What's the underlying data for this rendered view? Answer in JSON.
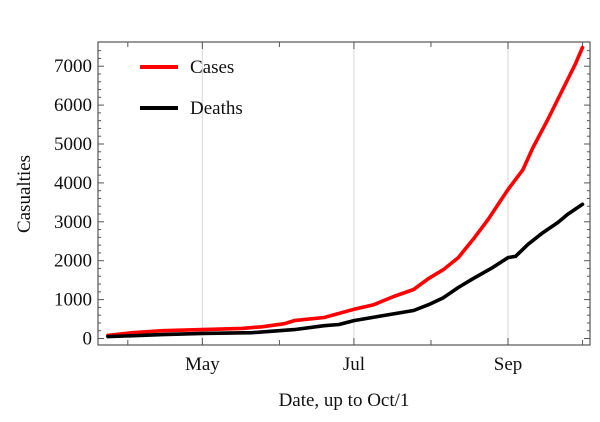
{
  "chart_data": {
    "type": "line",
    "title": "",
    "xlabel": "Date, up to Oct/1",
    "ylabel": "Casualties",
    "ylim": [
      0,
      7500
    ],
    "xlim": [
      "2014-03-20",
      "2014-10-04"
    ],
    "yticks": [
      0,
      1000,
      2000,
      3000,
      4000,
      5000,
      6000,
      7000
    ],
    "xticks": [
      {
        "date": "2014-05-01",
        "label": "May"
      },
      {
        "date": "2014-07-01",
        "label": "Jul"
      },
      {
        "date": "2014-09-01",
        "label": "Sep"
      }
    ],
    "x_minor_ticks": [
      "2014-04-01",
      "2014-06-01",
      "2014-08-01",
      "2014-10-01"
    ],
    "grid": "vertical lines at labeled months",
    "legend_placement": "top-left",
    "series": [
      {
        "name": "Cases",
        "color": "#ff0000",
        "points": [
          [
            "2014-03-24",
            80
          ],
          [
            "2014-04-03",
            150
          ],
          [
            "2014-04-15",
            200
          ],
          [
            "2014-05-01",
            230
          ],
          [
            "2014-05-17",
            260
          ],
          [
            "2014-05-25",
            300
          ],
          [
            "2014-06-03",
            380
          ],
          [
            "2014-06-07",
            460
          ],
          [
            "2014-06-19",
            540
          ],
          [
            "2014-07-01",
            750
          ],
          [
            "2014-07-09",
            870
          ],
          [
            "2014-07-17",
            1080
          ],
          [
            "2014-07-25",
            1260
          ],
          [
            "2014-07-31",
            1540
          ],
          [
            "2014-08-06",
            1770
          ],
          [
            "2014-08-12",
            2080
          ],
          [
            "2014-08-18",
            2550
          ],
          [
            "2014-08-24",
            3060
          ],
          [
            "2014-09-01",
            3830
          ],
          [
            "2014-09-07",
            4340
          ],
          [
            "2014-09-11",
            4900
          ],
          [
            "2014-09-17",
            5630
          ],
          [
            "2014-09-23",
            6400
          ],
          [
            "2014-09-28",
            7040
          ],
          [
            "2014-10-01",
            7480
          ]
        ]
      },
      {
        "name": "Deaths",
        "color": "#000000",
        "points": [
          [
            "2014-03-24",
            50
          ],
          [
            "2014-04-15",
            100
          ],
          [
            "2014-05-01",
            130
          ],
          [
            "2014-05-21",
            150
          ],
          [
            "2014-06-07",
            230
          ],
          [
            "2014-06-19",
            330
          ],
          [
            "2014-06-25",
            360
          ],
          [
            "2014-07-01",
            460
          ],
          [
            "2014-07-13",
            590
          ],
          [
            "2014-07-25",
            720
          ],
          [
            "2014-07-31",
            870
          ],
          [
            "2014-08-06",
            1050
          ],
          [
            "2014-08-12",
            1310
          ],
          [
            "2014-08-18",
            1540
          ],
          [
            "2014-08-26",
            1830
          ],
          [
            "2014-09-01",
            2080
          ],
          [
            "2014-09-04",
            2110
          ],
          [
            "2014-09-09",
            2420
          ],
          [
            "2014-09-15",
            2720
          ],
          [
            "2014-09-21",
            2980
          ],
          [
            "2014-09-25",
            3190
          ],
          [
            "2014-10-01",
            3450
          ]
        ]
      }
    ]
  }
}
